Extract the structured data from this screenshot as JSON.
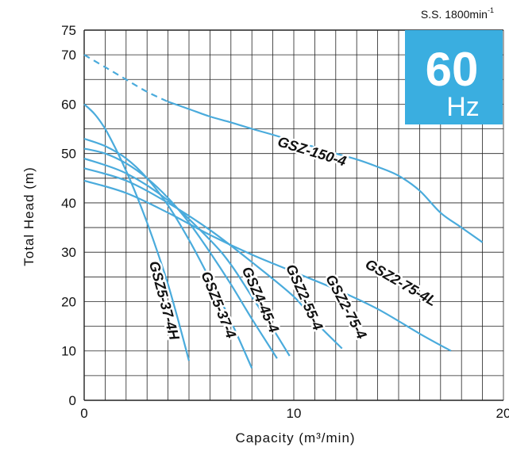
{
  "chart_data": {
    "type": "line",
    "title": "",
    "xlabel": "Capacity (m³/min)",
    "ylabel": "Total Head (m)",
    "xlim": [
      0,
      20
    ],
    "ylim": [
      0,
      75
    ],
    "xticks": [
      "0",
      "10",
      "20"
    ],
    "yticks": [
      "0",
      "10",
      "20",
      "30",
      "40",
      "50",
      "60",
      "70",
      "75"
    ],
    "grid": true,
    "speed_note": "S.S. 1800min",
    "speed_note_sup": "-1",
    "badge": {
      "value": "60",
      "unit": "Hz",
      "color": "#3aaee0"
    },
    "curve_color": "#4aabdc",
    "series": [
      {
        "name": "GSZ-150-4",
        "x": [
          0,
          1,
          2,
          3,
          4,
          5,
          6,
          7,
          8,
          9,
          10,
          11,
          12,
          13,
          14,
          15,
          16,
          17,
          18,
          19
        ],
        "y": [
          70,
          67.5,
          65,
          62.5,
          60.5,
          59,
          57.5,
          56.3,
          55,
          53.8,
          52.5,
          51.3,
          50,
          48.8,
          47.3,
          45.5,
          42.5,
          38,
          35,
          32
        ],
        "dashed_until_x": 4
      },
      {
        "name": "GSZ2-75-4L",
        "x": [
          0,
          2,
          4,
          6,
          8,
          10,
          12,
          14,
          16,
          17.5
        ],
        "y": [
          44.5,
          42,
          38,
          33.5,
          29.5,
          26,
          22.5,
          18.5,
          13.5,
          10
        ]
      },
      {
        "name": "GSZ2-75-4",
        "x": [
          0,
          2,
          4,
          6,
          8,
          10,
          11,
          12.3
        ],
        "y": [
          47,
          44.5,
          40,
          34.5,
          28,
          21,
          16,
          10.5
        ]
      },
      {
        "name": "GSZ2-55-4",
        "x": [
          0,
          2,
          4,
          6,
          7,
          8,
          9,
          9.8
        ],
        "y": [
          49,
          46,
          40.5,
          32.5,
          27.5,
          21,
          14.5,
          9
        ]
      },
      {
        "name": "GSZ4-45-4",
        "x": [
          0,
          1,
          2,
          3,
          4,
          5,
          6,
          7,
          8,
          9.2
        ],
        "y": [
          51,
          50,
          48,
          45,
          41,
          36,
          30,
          23.5,
          16.5,
          8.5
        ]
      },
      {
        "name": "GSZ5-37-4",
        "x": [
          0,
          1,
          2,
          3,
          4,
          5,
          6,
          7,
          8
        ],
        "y": [
          53,
          51.5,
          49,
          45,
          39.5,
          32.5,
          24.5,
          16,
          6.5
        ]
      },
      {
        "name": "GSZ5-37-4H",
        "x": [
          0,
          0.5,
          1,
          1.5,
          2,
          2.5,
          3,
          3.5,
          4,
          4.5,
          5
        ],
        "y": [
          60,
          58,
          55,
          51,
          46.5,
          41.5,
          36,
          30,
          23.5,
          16,
          8
        ]
      }
    ],
    "annotations": [
      {
        "series": "GSZ-150-4",
        "text": "GSZ-150-4",
        "x": 10.8,
        "y": 49.5,
        "angle": 17
      },
      {
        "series": "GSZ2-75-4L",
        "text": "GSZ2-75-4L",
        "x": 15.0,
        "y": 23.0,
        "angle": 30
      },
      {
        "series": "GSZ2-75-4",
        "text": "GSZ2-75-4",
        "x": 12.3,
        "y": 18.5,
        "angle": 62
      },
      {
        "series": "GSZ2-55-4",
        "text": "GSZ2-55-4",
        "x": 10.3,
        "y": 20.5,
        "angle": 66
      },
      {
        "series": "GSZ4-45-4",
        "text": "GSZ4-45-4",
        "x": 8.2,
        "y": 20.0,
        "angle": 66
      },
      {
        "series": "GSZ5-37-4",
        "text": "GSZ5-37-4",
        "x": 6.2,
        "y": 19.0,
        "angle": 68
      },
      {
        "series": "GSZ5-37-4H",
        "text": "GSZ5-37-4H",
        "x": 3.6,
        "y": 20.0,
        "angle": 75
      }
    ]
  }
}
